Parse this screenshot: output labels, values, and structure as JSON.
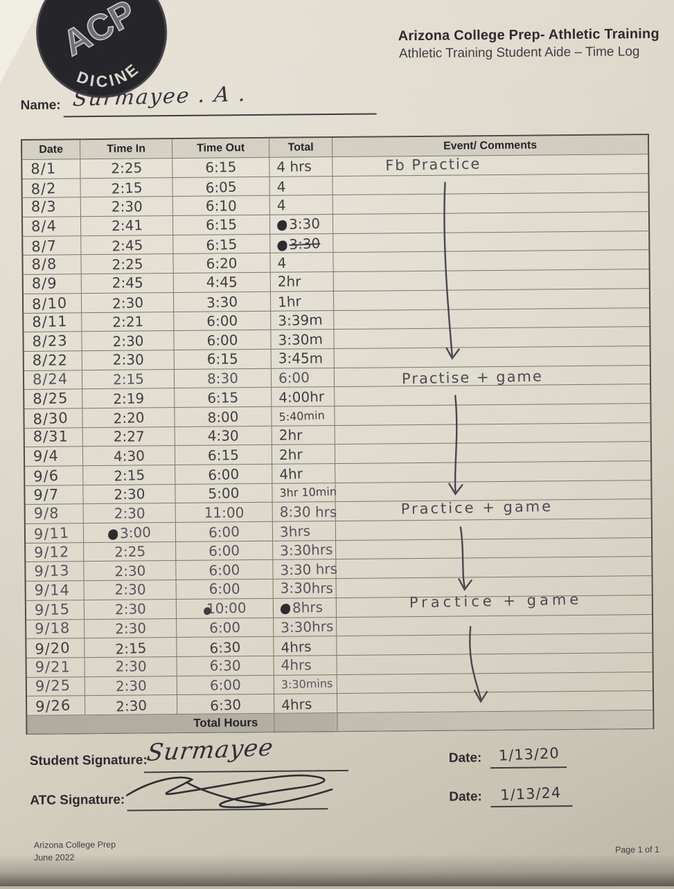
{
  "colors": {
    "paper": "#d9d3c5",
    "ink": "#3f3e45",
    "table_line": "#7a766b",
    "shade_header": "#c6c1b3",
    "shade_total_row": "#b2ada1",
    "logo_bg": "#26262a"
  },
  "logo": {
    "name": "acp-sports-medicine-logo",
    "monogram": "ACP",
    "arc_text": "DICINE"
  },
  "header": {
    "title_line1": "Arizona College Prep- Athletic Training",
    "title_line2": "Athletic Training Student Aide – Time Log"
  },
  "name_field": {
    "label": "Name:",
    "value": "Surmayee . A ."
  },
  "table": {
    "columns": [
      "Date",
      "Time In",
      "Time Out",
      "Total",
      "Event/ Comments"
    ],
    "total_row_label": "Total Hours",
    "rows": [
      {
        "date": "8/1",
        "in": "2:25",
        "out": "6:15",
        "total": "4 hrs"
      },
      {
        "date": "8/2",
        "in": "2:15",
        "out": "6:05",
        "total": "4"
      },
      {
        "date": "8/3",
        "in": "2:30",
        "out": "6:10",
        "total": "4"
      },
      {
        "date": "8/4",
        "in": "2:41",
        "out": "6:15",
        "total": "3:30",
        "total_mark": "blob"
      },
      {
        "date": "8/7",
        "in": "2:45",
        "out": "6:15",
        "total": "3:30",
        "total_mark": "blob",
        "total_strike": true
      },
      {
        "date": "8/8",
        "in": "2:25",
        "out": "6:20",
        "total": "4"
      },
      {
        "date": "8/9",
        "in": "2:45",
        "out": "4:45",
        "total": "2hr"
      },
      {
        "date": "8/10",
        "in": "2:30",
        "out": "3:30",
        "total": "1hr"
      },
      {
        "date": "8/11",
        "in": "2:21",
        "out": "6:00",
        "total": "3:39m"
      },
      {
        "date": "8/23",
        "in": "2:30",
        "out": "6:00",
        "total": "3:30m"
      },
      {
        "date": "8/22",
        "in": "2:30",
        "out": "6:15",
        "total": "3:45m"
      },
      {
        "date": "8/24",
        "in": "2:15",
        "out": "8:30",
        "total": "6:00",
        "light": true
      },
      {
        "date": "8/25",
        "in": "2:19",
        "out": "6:15",
        "total": "4:00hr"
      },
      {
        "date": "8/30",
        "in": "2:20",
        "out": "8:00",
        "total": "5:40min",
        "total_small": true
      },
      {
        "date": "8/31",
        "in": "2:27",
        "out": "4:30",
        "total": "2hr"
      },
      {
        "date": "9/4",
        "in": "4:30",
        "out": "6:15",
        "total": "2hr"
      },
      {
        "date": "9/6",
        "in": "2:15",
        "out": "6:00",
        "total": "4hr"
      },
      {
        "date": "9/7",
        "in": "2:30",
        "out": "5:00",
        "total": "3hr 10min",
        "total_small": true
      },
      {
        "date": "9/8",
        "in": "2:30",
        "out": "11:00",
        "total": "8:30 hrs",
        "light": true
      },
      {
        "date": "9/11",
        "in": "3:00",
        "out": "6:00",
        "total": "3hrs",
        "in_mark": "blob",
        "light": true
      },
      {
        "date": "9/12",
        "in": "2:25",
        "out": "6:00",
        "total": "3:30hrs",
        "light": true
      },
      {
        "date": "9/13",
        "in": "2:30",
        "out": "6:00",
        "total": "3:30 hrs",
        "light": true
      },
      {
        "date": "9/14",
        "in": "2:30",
        "out": "6:00",
        "total": "3:30hrs",
        "light": true
      },
      {
        "date": "9/15",
        "in": "2:30",
        "out": "10:00",
        "total": "8hrs",
        "out_mark": "blob",
        "total_mark": "blob",
        "light": true
      },
      {
        "date": "9/18",
        "in": "2:30",
        "out": "6:00",
        "total": "3:30hrs",
        "light": true
      },
      {
        "date": "9/20",
        "in": "2:15",
        "out": "6:30",
        "total": "4hrs"
      },
      {
        "date": "9/21",
        "in": "2:30",
        "out": "6:30",
        "total": "4hrs",
        "light": true
      },
      {
        "date": "9/25",
        "in": "2:30",
        "out": "6:00",
        "total": "3:30mins",
        "total_small": true,
        "light": true
      },
      {
        "date": "9/26",
        "in": "2:30",
        "out": "6:30",
        "total": "4hrs"
      }
    ]
  },
  "comments": {
    "c1": "Fb Practice",
    "c2": "Practise + game",
    "c3": "Practice + game",
    "c4": "Practice + game"
  },
  "signatures": {
    "student_label": "Student Signature:",
    "student_value": "Surmayee",
    "atc_label": "ATC Signature:",
    "date_label1": "Date:",
    "date_label2": "Date:",
    "student_date": "1/13/20",
    "atc_date": "1/13/24"
  },
  "footer": {
    "org": "Arizona College Prep",
    "revision": "June 2022",
    "page": "Page 1 of 1"
  }
}
